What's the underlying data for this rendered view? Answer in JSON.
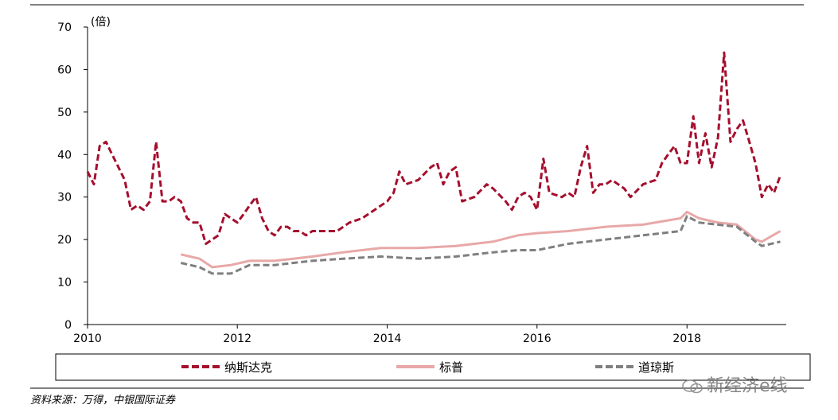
{
  "chart_data": {
    "type": "line",
    "unit_label": "(倍)",
    "x_range": [
      "2010-01-01",
      "2019-04-30"
    ],
    "x_ticks": [
      "2010",
      "2012",
      "2014",
      "2016",
      "2018"
    ],
    "ylim": [
      0,
      70
    ],
    "y_ticks": [
      0,
      10,
      20,
      30,
      40,
      50,
      60,
      70
    ],
    "grid": false,
    "legend_position": "bottom",
    "series": [
      {
        "name": "纳斯达克",
        "color": "#a50f2d",
        "style": "dashed",
        "points": [
          [
            "2010-01-01",
            36
          ],
          [
            "2010-02-01",
            33
          ],
          [
            "2010-03-01",
            42
          ],
          [
            "2010-04-01",
            43
          ],
          [
            "2010-05-01",
            40
          ],
          [
            "2010-06-01",
            37
          ],
          [
            "2010-07-01",
            34
          ],
          [
            "2010-08-01",
            27
          ],
          [
            "2010-09-01",
            28
          ],
          [
            "2010-10-01",
            27
          ],
          [
            "2010-11-01",
            29
          ],
          [
            "2010-12-01",
            43
          ],
          [
            "2011-01-01",
            29
          ],
          [
            "2011-02-01",
            29
          ],
          [
            "2011-03-01",
            30
          ],
          [
            "2011-04-01",
            29
          ],
          [
            "2011-05-01",
            25
          ],
          [
            "2011-06-01",
            24
          ],
          [
            "2011-07-01",
            24
          ],
          [
            "2011-08-01",
            19
          ],
          [
            "2011-09-01",
            20
          ],
          [
            "2011-10-01",
            21
          ],
          [
            "2011-11-01",
            26
          ],
          [
            "2011-12-01",
            25
          ],
          [
            "2012-01-01",
            24
          ],
          [
            "2012-02-01",
            26
          ],
          [
            "2012-03-01",
            28
          ],
          [
            "2012-04-01",
            30
          ],
          [
            "2012-05-01",
            25
          ],
          [
            "2012-06-01",
            22
          ],
          [
            "2012-07-01",
            21
          ],
          [
            "2012-08-01",
            23
          ],
          [
            "2012-09-01",
            23
          ],
          [
            "2012-10-01",
            22
          ],
          [
            "2012-11-01",
            22
          ],
          [
            "2012-12-01",
            21
          ],
          [
            "2013-01-01",
            22
          ],
          [
            "2013-03-01",
            22
          ],
          [
            "2013-05-01",
            22
          ],
          [
            "2013-07-01",
            24
          ],
          [
            "2013-09-01",
            25
          ],
          [
            "2013-11-01",
            27
          ],
          [
            "2014-01-01",
            29
          ],
          [
            "2014-02-01",
            31
          ],
          [
            "2014-03-01",
            36
          ],
          [
            "2014-04-01",
            33
          ],
          [
            "2014-06-01",
            34
          ],
          [
            "2014-08-01",
            37
          ],
          [
            "2014-09-01",
            38
          ],
          [
            "2014-10-01",
            33
          ],
          [
            "2014-11-01",
            36
          ],
          [
            "2014-12-01",
            37
          ],
          [
            "2015-01-01",
            29
          ],
          [
            "2015-03-01",
            30
          ],
          [
            "2015-05-01",
            33
          ],
          [
            "2015-06-01",
            32
          ],
          [
            "2015-08-01",
            29
          ],
          [
            "2015-09-01",
            27
          ],
          [
            "2015-10-01",
            30
          ],
          [
            "2015-11-01",
            31
          ],
          [
            "2015-12-01",
            30
          ],
          [
            "2016-01-01",
            27
          ],
          [
            "2016-02-01",
            39
          ],
          [
            "2016-03-01",
            31
          ],
          [
            "2016-05-01",
            30
          ],
          [
            "2016-06-01",
            31
          ],
          [
            "2016-07-01",
            30
          ],
          [
            "2016-08-01",
            37
          ],
          [
            "2016-09-01",
            42
          ],
          [
            "2016-10-01",
            31
          ],
          [
            "2016-11-01",
            33
          ],
          [
            "2016-12-01",
            33
          ],
          [
            "2017-01-01",
            34
          ],
          [
            "2017-03-01",
            32
          ],
          [
            "2017-04-01",
            30
          ],
          [
            "2017-06-01",
            33
          ],
          [
            "2017-08-01",
            34
          ],
          [
            "2017-09-01",
            38
          ],
          [
            "2017-10-01",
            40
          ],
          [
            "2017-11-01",
            42
          ],
          [
            "2017-12-01",
            38
          ],
          [
            "2018-01-01",
            38
          ],
          [
            "2018-02-01",
            49
          ],
          [
            "2018-03-01",
            38
          ],
          [
            "2018-04-01",
            45
          ],
          [
            "2018-05-01",
            37
          ],
          [
            "2018-06-01",
            44
          ],
          [
            "2018-07-01",
            64
          ],
          [
            "2018-08-01",
            43
          ],
          [
            "2018-09-01",
            46
          ],
          [
            "2018-10-01",
            48
          ],
          [
            "2018-11-01",
            43
          ],
          [
            "2018-12-01",
            38
          ],
          [
            "2019-01-01",
            30
          ],
          [
            "2019-02-01",
            33
          ],
          [
            "2019-03-01",
            31
          ],
          [
            "2019-04-01",
            35
          ]
        ]
      },
      {
        "name": "标普",
        "color": "#e8a8a8",
        "style": "solid",
        "points": [
          [
            "2011-04-01",
            16.5
          ],
          [
            "2011-07-01",
            15.5
          ],
          [
            "2011-09-01",
            13.5
          ],
          [
            "2011-12-01",
            14
          ],
          [
            "2012-03-01",
            15
          ],
          [
            "2012-07-01",
            15
          ],
          [
            "2012-10-01",
            15.5
          ],
          [
            "2013-01-01",
            16
          ],
          [
            "2013-06-01",
            17
          ],
          [
            "2013-12-01",
            18
          ],
          [
            "2014-06-01",
            18
          ],
          [
            "2014-12-01",
            18.5
          ],
          [
            "2015-06-01",
            19.5
          ],
          [
            "2015-10-01",
            21
          ],
          [
            "2016-01-01",
            21.5
          ],
          [
            "2016-06-01",
            22
          ],
          [
            "2016-12-01",
            23
          ],
          [
            "2017-06-01",
            23.5
          ],
          [
            "2017-12-01",
            25
          ],
          [
            "2018-01-01",
            26.5
          ],
          [
            "2018-03-01",
            25
          ],
          [
            "2018-06-01",
            24
          ],
          [
            "2018-09-01",
            23.5
          ],
          [
            "2018-12-01",
            20
          ],
          [
            "2019-01-01",
            19.5
          ],
          [
            "2019-04-01",
            22
          ]
        ]
      },
      {
        "name": "道琼斯",
        "color": "#7f7f7f",
        "style": "dashed",
        "points": [
          [
            "2011-04-01",
            14.5
          ],
          [
            "2011-07-01",
            13.5
          ],
          [
            "2011-09-01",
            12
          ],
          [
            "2011-12-01",
            12
          ],
          [
            "2012-03-01",
            14
          ],
          [
            "2012-07-01",
            14
          ],
          [
            "2012-10-01",
            14.5
          ],
          [
            "2013-01-01",
            15
          ],
          [
            "2013-06-01",
            15.5
          ],
          [
            "2013-12-01",
            16
          ],
          [
            "2014-06-01",
            15.5
          ],
          [
            "2014-12-01",
            16
          ],
          [
            "2015-06-01",
            17
          ],
          [
            "2015-10-01",
            17.5
          ],
          [
            "2016-01-01",
            17.5
          ],
          [
            "2016-06-01",
            19
          ],
          [
            "2016-12-01",
            20
          ],
          [
            "2017-06-01",
            21
          ],
          [
            "2017-12-01",
            22
          ],
          [
            "2018-01-01",
            25.5
          ],
          [
            "2018-03-01",
            24
          ],
          [
            "2018-06-01",
            23.5
          ],
          [
            "2018-09-01",
            23
          ],
          [
            "2018-12-01",
            19.5
          ],
          [
            "2019-01-01",
            18.5
          ],
          [
            "2019-04-01",
            19.5
          ]
        ]
      }
    ]
  },
  "source": "资料来源：万得，中银国际证券",
  "watermark": "新经济e线"
}
